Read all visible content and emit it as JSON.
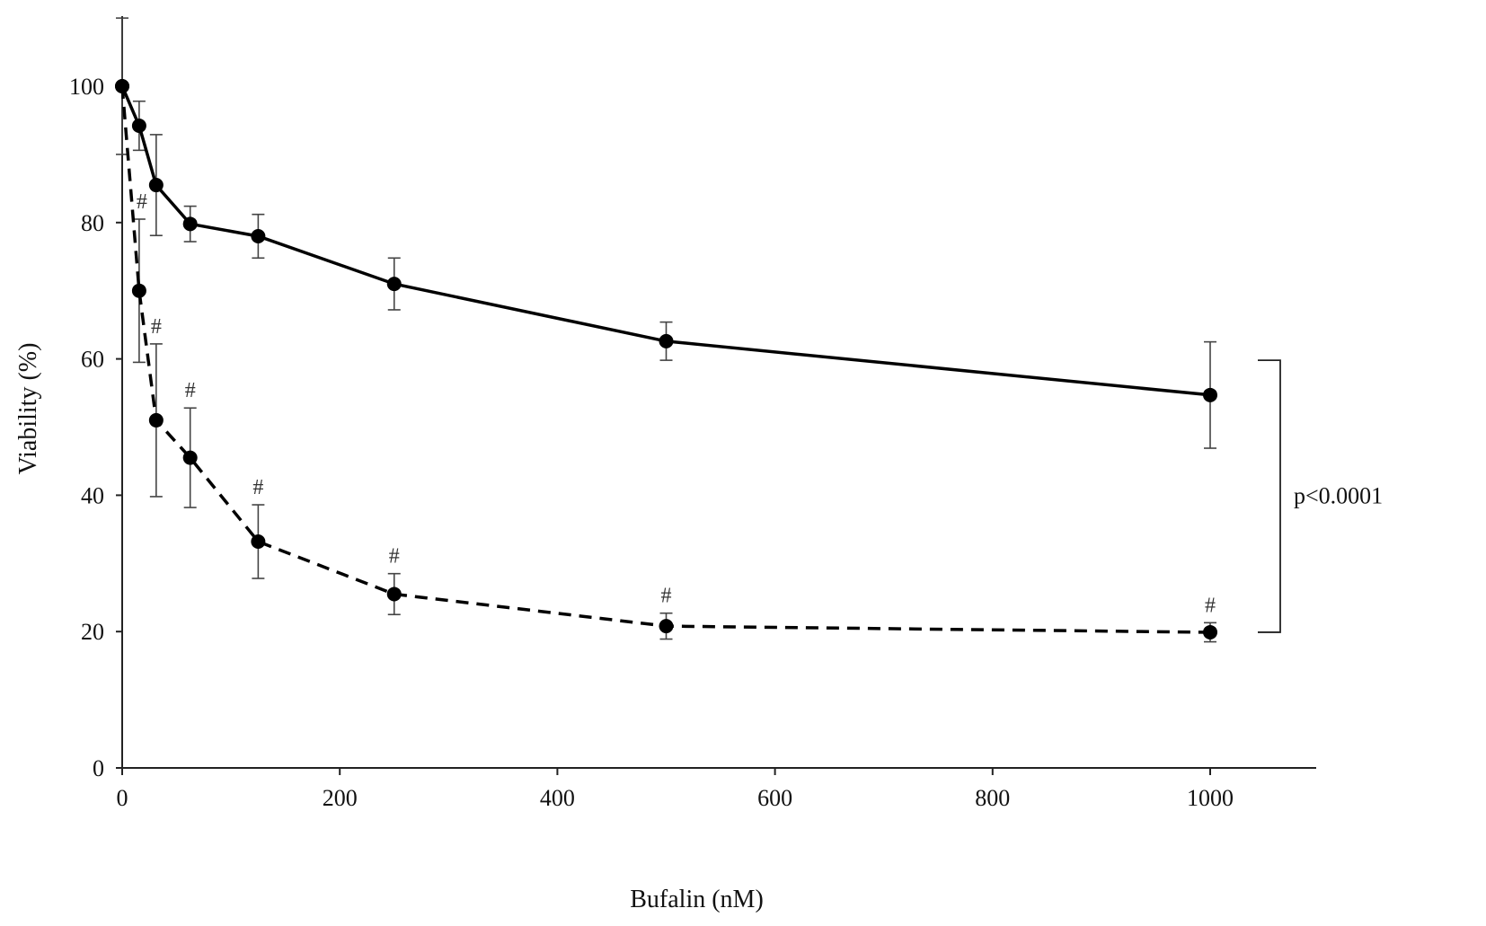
{
  "chart_data": {
    "type": "line",
    "title": "",
    "xlabel": "Bufalin (nM)",
    "ylabel": "Viability (%)",
    "xlim": [
      0,
      1100
    ],
    "ylim": [
      0,
      110
    ],
    "x_ticks": [
      0,
      200,
      400,
      600,
      800,
      1000
    ],
    "y_ticks": [
      0,
      20,
      40,
      60,
      80,
      100
    ],
    "x_tick_labels": [
      "0",
      "200",
      "400",
      "600",
      "800",
      "1000"
    ],
    "y_tick_labels": [
      "0",
      "20",
      "40",
      "60",
      "80",
      "100"
    ],
    "grid": false,
    "legend": "none",
    "series": [
      {
        "style": "solid",
        "color": "#000000",
        "x": [
          0,
          15.6,
          31.25,
          62.5,
          125,
          250,
          500,
          1000
        ],
        "values": [
          100,
          94.2,
          85.5,
          79.8,
          78,
          71,
          62.6,
          54.7
        ],
        "errors": [
          10,
          3.6,
          7.4,
          2.6,
          3.2,
          3.8,
          2.8,
          7.8
        ]
      },
      {
        "style": "dashed",
        "color": "#000000",
        "x": [
          0,
          15.6,
          31.25,
          62.5,
          125,
          250,
          500,
          1000
        ],
        "values": [
          100,
          70,
          51,
          45.5,
          33.2,
          25.5,
          20.8,
          19.9
        ],
        "errors": [
          0,
          10.5,
          11.2,
          7.3,
          5.4,
          3,
          1.9,
          1.4
        ],
        "significance_marks": [
          "",
          "#",
          "#",
          "#",
          "#",
          "#",
          "#",
          "#"
        ]
      }
    ],
    "annotations": [
      {
        "text": "p<0.0001",
        "type": "bracket",
        "y_range": [
          19.9,
          59.8
        ]
      }
    ]
  }
}
